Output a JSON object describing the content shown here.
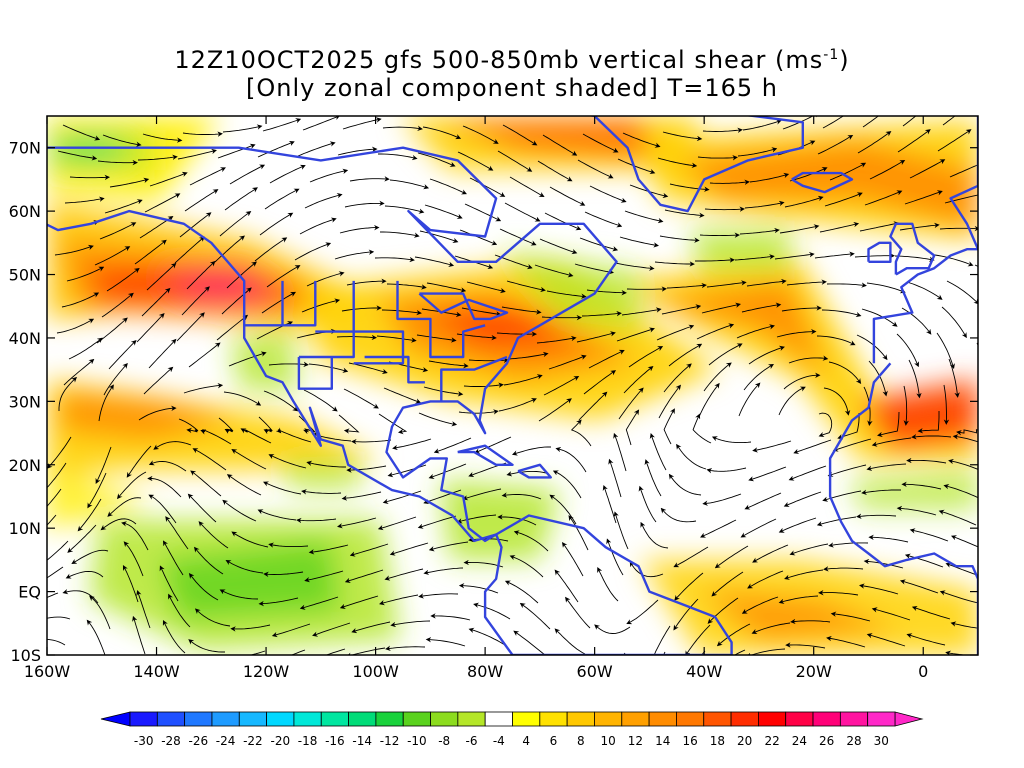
{
  "title": {
    "line1_prefix": "12Z10OCT2025 gfs 500-850mb vertical shear (ms",
    "line1_sup": "-1",
    "line1_suffix": ")",
    "line2": "[Only zonal component shaded] T=165 h"
  },
  "map": {
    "lon_range": [
      -160,
      10
    ],
    "lat_range": [
      -10,
      75
    ],
    "lat_ticks": [
      {
        "value": 70,
        "label": "70N"
      },
      {
        "value": 60,
        "label": "60N"
      },
      {
        "value": 50,
        "label": "50N"
      },
      {
        "value": 40,
        "label": "40N"
      },
      {
        "value": 30,
        "label": "30N"
      },
      {
        "value": 20,
        "label": "20N"
      },
      {
        "value": 10,
        "label": "10N"
      },
      {
        "value": 0,
        "label": "EQ"
      },
      {
        "value": -10,
        "label": "10S"
      }
    ],
    "lon_ticks": [
      {
        "value": -160,
        "label": "160W"
      },
      {
        "value": -140,
        "label": "140W"
      },
      {
        "value": -120,
        "label": "120W"
      },
      {
        "value": -100,
        "label": "100W"
      },
      {
        "value": -80,
        "label": "80W"
      },
      {
        "value": -60,
        "label": "60W"
      },
      {
        "value": -40,
        "label": "40W"
      },
      {
        "value": -20,
        "label": "20W"
      },
      {
        "value": 0,
        "label": "0"
      }
    ],
    "coastline_color": "#3344dd",
    "streamline_color": "#000000"
  },
  "colorbar": {
    "labels": [
      "-30",
      "-28",
      "-26",
      "-24",
      "-22",
      "-20",
      "-18",
      "-16",
      "-14",
      "-12",
      "-10",
      "-8",
      "-6",
      "-4",
      "4",
      "6",
      "8",
      "10",
      "12",
      "14",
      "16",
      "18",
      "20",
      "22",
      "24",
      "26",
      "28",
      "30"
    ],
    "colors": [
      "#1a1aff",
      "#1f50ff",
      "#1f78ff",
      "#1e9bff",
      "#16b8ff",
      "#00d8ff",
      "#00e8d8",
      "#00e6a0",
      "#00dc78",
      "#19d23c",
      "#5ad21e",
      "#8cdc1e",
      "#b4e628",
      "#ffffff",
      "#ffff00",
      "#ffe100",
      "#ffc800",
      "#ffb400",
      "#ffa000",
      "#ff8c00",
      "#ff7800",
      "#ff5500",
      "#ff2d00",
      "#ff0000",
      "#ff0046",
      "#ff0078",
      "#ff14a0",
      "#ff28c8"
    ],
    "low_arrow_color": "#0000ff",
    "high_arrow_color": "#ff28c8"
  }
}
